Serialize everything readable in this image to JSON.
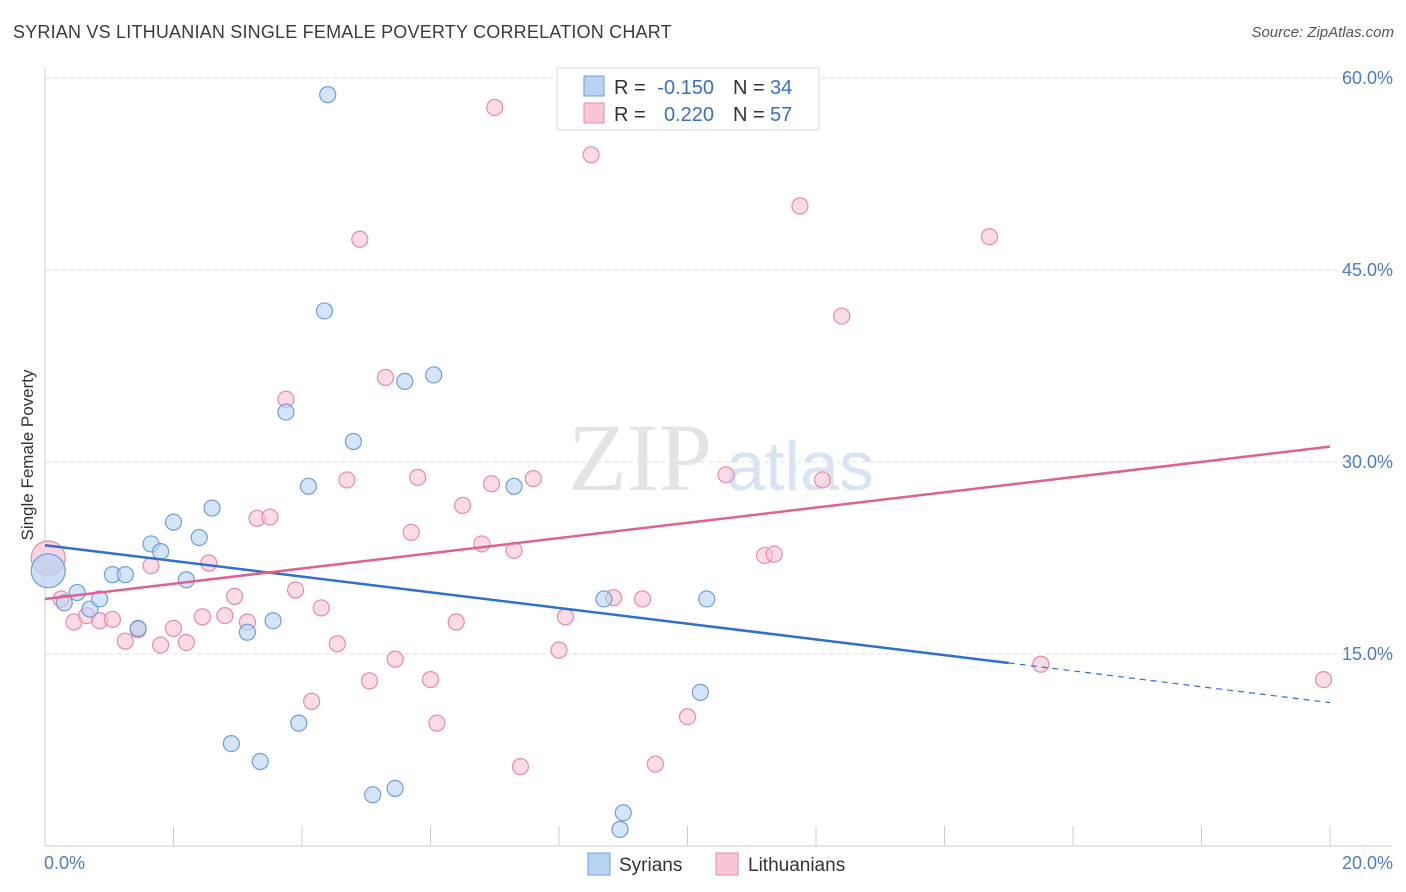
{
  "header": {
    "title": "SYRIAN VS LITHUANIAN SINGLE FEMALE POVERTY CORRELATION CHART",
    "source": "Source: ZipAtlas.com"
  },
  "colors": {
    "syrians_fill": "#b9d3f3",
    "syrians_stroke": "#6d9ddd",
    "syrians_line": "#2f6fd0",
    "lithuanians_fill": "#f8c5d5",
    "lithuanians_stroke": "#e68aa8",
    "lithuanians_line": "#e0608e",
    "tick_text": "#4a7cc7"
  },
  "legend": {
    "r_label": "R =",
    "n_label": "N =",
    "entries": [
      {
        "r": "-0.150",
        "n": "34"
      },
      {
        "r": "0.220",
        "n": "57"
      }
    ]
  },
  "watermark": {
    "zip": "ZIP",
    "atlas": "atlas"
  },
  "chart_data": {
    "type": "scatter",
    "title": "SYRIAN VS LITHUANIAN SINGLE FEMALE POVERTY CORRELATION CHART",
    "xlabel": "",
    "ylabel": "Single Female Poverty",
    "xlim": [
      0,
      20
    ],
    "ylim": [
      0,
      60
    ],
    "x_tick_labels": [
      "0.0%",
      "20.0%"
    ],
    "y_ticks": [
      15,
      30,
      45,
      60
    ],
    "y_tick_labels": [
      "15.0%",
      "30.0%",
      "45.0%",
      "60.0%"
    ],
    "grid": true,
    "legend_position": "top-center",
    "series": [
      {
        "name": "Syrians",
        "r": -0.15,
        "n": 34,
        "trend": {
          "x_start": 0.0,
          "y_start": 23.5,
          "x_end": 15.0,
          "y_end": 14.3,
          "dashed_to_x": 20.0,
          "dashed_end_y": 11.2
        },
        "points": [
          [
            0.05,
            21.5
          ],
          [
            0.3,
            19.0
          ],
          [
            0.5,
            19.8
          ],
          [
            0.7,
            18.5
          ],
          [
            0.85,
            19.3
          ],
          [
            1.05,
            21.2
          ],
          [
            1.25,
            21.2
          ],
          [
            1.45,
            17.0
          ],
          [
            1.65,
            23.6
          ],
          [
            1.8,
            23.0
          ],
          [
            2.0,
            25.3
          ],
          [
            2.2,
            20.8
          ],
          [
            2.4,
            24.1
          ],
          [
            2.6,
            26.4
          ],
          [
            2.9,
            8.0
          ],
          [
            3.15,
            16.7
          ],
          [
            3.35,
            6.6
          ],
          [
            3.55,
            17.6
          ],
          [
            3.75,
            33.9
          ],
          [
            3.95,
            9.6
          ],
          [
            4.1,
            28.1
          ],
          [
            4.35,
            41.8
          ],
          [
            4.4,
            58.7
          ],
          [
            4.8,
            31.6
          ],
          [
            5.1,
            4.0
          ],
          [
            5.45,
            4.5
          ],
          [
            5.6,
            36.3
          ],
          [
            6.05,
            36.8
          ],
          [
            7.3,
            28.1
          ],
          [
            8.7,
            19.3
          ],
          [
            9.0,
            2.6
          ],
          [
            8.95,
            1.3
          ],
          [
            10.2,
            12.0
          ],
          [
            10.3,
            19.3
          ]
        ]
      },
      {
        "name": "Lithuanians",
        "r": 0.22,
        "n": 57,
        "trend": {
          "x_start": 0.0,
          "y_start": 19.3,
          "x_end": 20.0,
          "y_end": 31.2
        },
        "points": [
          [
            0.05,
            22.5
          ],
          [
            0.25,
            19.3
          ],
          [
            0.45,
            17.5
          ],
          [
            0.65,
            18.0
          ],
          [
            0.85,
            17.6
          ],
          [
            1.05,
            17.7
          ],
          [
            1.25,
            16.0
          ],
          [
            1.45,
            16.9
          ],
          [
            1.65,
            21.9
          ],
          [
            1.8,
            15.7
          ],
          [
            2.0,
            17.0
          ],
          [
            2.2,
            15.9
          ],
          [
            2.45,
            17.9
          ],
          [
            2.55,
            22.1
          ],
          [
            2.8,
            18.0
          ],
          [
            2.95,
            19.5
          ],
          [
            3.15,
            17.5
          ],
          [
            3.3,
            25.6
          ],
          [
            3.5,
            25.7
          ],
          [
            3.75,
            34.9
          ],
          [
            3.9,
            20.0
          ],
          [
            4.15,
            11.3
          ],
          [
            4.3,
            18.6
          ],
          [
            4.55,
            15.8
          ],
          [
            4.7,
            28.6
          ],
          [
            4.9,
            47.4
          ],
          [
            5.05,
            12.9
          ],
          [
            5.3,
            36.6
          ],
          [
            5.45,
            14.6
          ],
          [
            5.7,
            24.5
          ],
          [
            5.8,
            28.8
          ],
          [
            6.0,
            13.0
          ],
          [
            6.1,
            9.6
          ],
          [
            6.4,
            17.5
          ],
          [
            6.5,
            26.6
          ],
          [
            6.8,
            23.6
          ],
          [
            6.95,
            28.3
          ],
          [
            7.0,
            57.7
          ],
          [
            7.3,
            23.1
          ],
          [
            7.4,
            6.2
          ],
          [
            7.6,
            28.7
          ],
          [
            8.0,
            15.3
          ],
          [
            8.1,
            17.9
          ],
          [
            8.5,
            54.0
          ],
          [
            8.85,
            19.4
          ],
          [
            9.3,
            19.3
          ],
          [
            9.5,
            6.4
          ],
          [
            10.0,
            10.1
          ],
          [
            10.6,
            29.0
          ],
          [
            11.2,
            22.7
          ],
          [
            11.35,
            22.8
          ],
          [
            11.75,
            50.0
          ],
          [
            12.1,
            28.6
          ],
          [
            12.4,
            41.4
          ],
          [
            14.7,
            47.6
          ],
          [
            15.5,
            14.2
          ],
          [
            19.9,
            13.0
          ]
        ]
      }
    ]
  }
}
